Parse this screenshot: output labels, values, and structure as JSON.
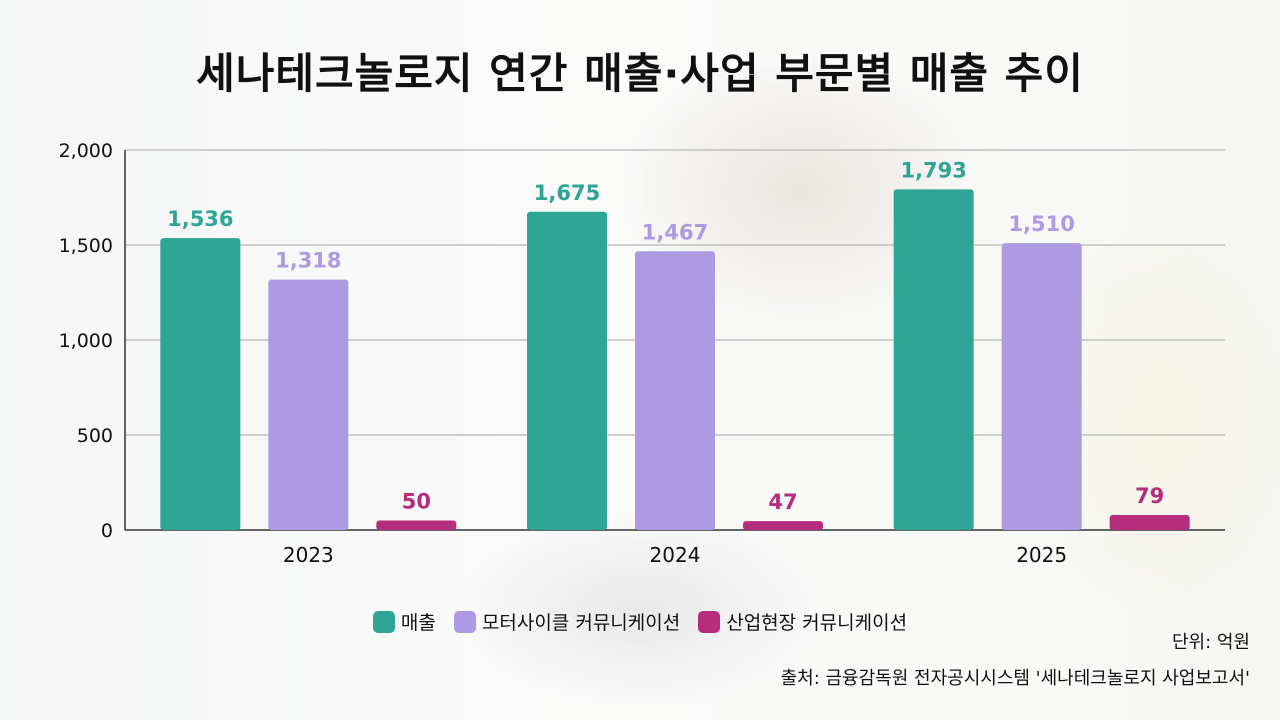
{
  "title": "세나테크놀로지 연간 매출·사업 부문별 매출 추이",
  "unit_note": "단위: 억원",
  "source_note": "출처: 금융감독원 전자공시시스템 '세나테크놀로지 사업보고서'",
  "chart_data": {
    "type": "bar",
    "categories": [
      "2023",
      "2024",
      "2025"
    ],
    "series": [
      {
        "name": "매출",
        "color": "#2fa597",
        "values": [
          1536,
          1675,
          1793
        ],
        "labels": [
          "1,536",
          "1,675",
          "1,793"
        ]
      },
      {
        "name": "모터사이클 커뮤니케이션",
        "color": "#ae9ae2",
        "values": [
          1318,
          1467,
          1510
        ],
        "labels": [
          "1,318",
          "1,467",
          "1,510"
        ]
      },
      {
        "name": "산업현장 커뮤니케이션",
        "color": "#b62d7e",
        "values": [
          50,
          47,
          79
        ],
        "labels": [
          "50",
          "47",
          "79"
        ]
      }
    ],
    "ylim": [
      0,
      2000
    ],
    "yticks": [
      0,
      500,
      1000,
      1500,
      2000
    ],
    "ytick_labels": [
      "0",
      "500",
      "1,000",
      "1,500",
      "2,000"
    ],
    "grid": true,
    "legend_position": "bottom"
  }
}
